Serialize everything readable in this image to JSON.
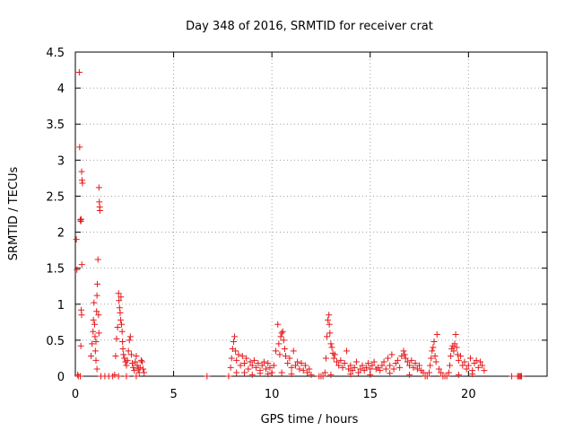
{
  "chart_data": {
    "type": "scatter",
    "title": "Day 348 of 2016, SRMTID for receiver crat",
    "xlabel": "GPS time / hours",
    "ylabel": "SRMTID / TECUs",
    "xlim": [
      0,
      24
    ],
    "ylim": [
      0,
      4.5
    ],
    "x_ticks": [
      0,
      5,
      10,
      15,
      20
    ],
    "x_tick_labels": [
      "0",
      "5",
      "10",
      "15",
      "20"
    ],
    "y_ticks": [
      0,
      0.5,
      1,
      1.5,
      2,
      2.5,
      3,
      3.5,
      4,
      4.5
    ],
    "y_tick_labels": [
      "0",
      "0.5",
      "1",
      "1.5",
      "2",
      "2.5",
      "3",
      "3.5",
      "4",
      "4.5"
    ],
    "grid": true,
    "marker": "+",
    "marker_color": "#e41a1c",
    "series": [
      {
        "name": "SRMTID",
        "points": [
          [
            0.05,
            1.9
          ],
          [
            0.08,
            1.48
          ],
          [
            0.12,
            0.02
          ],
          [
            0.15,
            0.0
          ],
          [
            0.2,
            4.22
          ],
          [
            0.22,
            3.18
          ],
          [
            0.25,
            2.17
          ],
          [
            0.28,
            2.15
          ],
          [
            0.3,
            2.18
          ],
          [
            0.32,
            2.84
          ],
          [
            0.34,
            2.72
          ],
          [
            0.36,
            2.68
          ],
          [
            0.33,
            1.55
          ],
          [
            0.3,
            0.92
          ],
          [
            0.32,
            0.85
          ],
          [
            0.28,
            0.42
          ],
          [
            0.25,
            0.0
          ],
          [
            0.8,
            0.28
          ],
          [
            0.85,
            0.45
          ],
          [
            0.9,
            0.62
          ],
          [
            0.92,
            0.78
          ],
          [
            0.95,
            1.02
          ],
          [
            0.98,
            0.72
          ],
          [
            1.0,
            0.55
          ],
          [
            1.02,
            0.35
          ],
          [
            1.05,
            0.48
          ],
          [
            1.08,
            0.9
          ],
          [
            1.1,
            1.12
          ],
          [
            1.12,
            1.28
          ],
          [
            1.15,
            1.62
          ],
          [
            1.18,
            0.85
          ],
          [
            1.2,
            0.6
          ],
          [
            1.05,
            0.22
          ],
          [
            1.1,
            0.1
          ],
          [
            1.2,
            2.62
          ],
          [
            1.22,
            2.42
          ],
          [
            1.24,
            2.35
          ],
          [
            1.25,
            2.3
          ],
          [
            1.3,
            0.0
          ],
          [
            1.5,
            0.0
          ],
          [
            1.7,
            0.0
          ],
          [
            1.9,
            0.0
          ],
          [
            2.0,
            0.02
          ],
          [
            2.05,
            0.28
          ],
          [
            2.1,
            0.52
          ],
          [
            2.15,
            0.68
          ],
          [
            2.2,
            1.15
          ],
          [
            2.22,
            1.05
          ],
          [
            2.25,
            0.95
          ],
          [
            2.28,
            0.88
          ],
          [
            2.3,
            0.78
          ],
          [
            2.32,
            1.1
          ],
          [
            2.35,
            0.72
          ],
          [
            2.38,
            0.62
          ],
          [
            2.4,
            0.48
          ],
          [
            2.42,
            0.38
          ],
          [
            2.45,
            0.3
          ],
          [
            2.5,
            0.25
          ],
          [
            2.55,
            0.2
          ],
          [
            2.6,
            0.15
          ],
          [
            2.65,
            0.22
          ],
          [
            2.7,
            0.35
          ],
          [
            2.75,
            0.5
          ],
          [
            2.8,
            0.55
          ],
          [
            2.85,
            0.3
          ],
          [
            2.9,
            0.18
          ],
          [
            2.95,
            0.12
          ],
          [
            3.0,
            0.08
          ],
          [
            3.05,
            0.2
          ],
          [
            3.1,
            0.28
          ],
          [
            3.15,
            0.15
          ],
          [
            3.2,
            0.1
          ],
          [
            3.25,
            0.05
          ],
          [
            3.3,
            0.12
          ],
          [
            3.35,
            0.22
          ],
          [
            3.4,
            0.2
          ],
          [
            3.45,
            0.1
          ],
          [
            3.5,
            0.05
          ],
          [
            2.2,
            0.0
          ],
          [
            2.6,
            0.0
          ],
          [
            3.1,
            0.0
          ],
          [
            6.7,
            0.0
          ],
          [
            7.8,
            0.0
          ],
          [
            7.9,
            0.12
          ],
          [
            7.95,
            0.25
          ],
          [
            8.0,
            0.38
          ],
          [
            8.05,
            0.48
          ],
          [
            8.1,
            0.55
          ],
          [
            8.15,
            0.35
          ],
          [
            8.2,
            0.22
          ],
          [
            8.3,
            0.3
          ],
          [
            8.4,
            0.15
          ],
          [
            8.5,
            0.28
          ],
          [
            8.6,
            0.18
          ],
          [
            8.7,
            0.25
          ],
          [
            8.8,
            0.1
          ],
          [
            8.9,
            0.2
          ],
          [
            9.0,
            0.15
          ],
          [
            9.1,
            0.22
          ],
          [
            9.2,
            0.12
          ],
          [
            9.3,
            0.18
          ],
          [
            9.4,
            0.08
          ],
          [
            9.5,
            0.15
          ],
          [
            9.6,
            0.2
          ],
          [
            9.7,
            0.1
          ],
          [
            9.8,
            0.18
          ],
          [
            9.9,
            0.12
          ],
          [
            10.0,
            0.05
          ],
          [
            8.2,
            0.05
          ],
          [
            8.6,
            0.05
          ],
          [
            9.0,
            0.02
          ],
          [
            9.4,
            0.04
          ],
          [
            9.8,
            0.03
          ],
          [
            10.1,
            0.15
          ],
          [
            10.2,
            0.35
          ],
          [
            10.3,
            0.72
          ],
          [
            10.35,
            0.45
          ],
          [
            10.4,
            0.3
          ],
          [
            10.45,
            0.55
          ],
          [
            10.5,
            0.6
          ],
          [
            10.55,
            0.62
          ],
          [
            10.6,
            0.5
          ],
          [
            10.65,
            0.38
          ],
          [
            10.7,
            0.28
          ],
          [
            10.8,
            0.18
          ],
          [
            10.9,
            0.25
          ],
          [
            11.0,
            0.12
          ],
          [
            11.1,
            0.35
          ],
          [
            11.2,
            0.15
          ],
          [
            11.3,
            0.2
          ],
          [
            11.4,
            0.1
          ],
          [
            11.5,
            0.18
          ],
          [
            11.6,
            0.08
          ],
          [
            11.7,
            0.15
          ],
          [
            11.8,
            0.05
          ],
          [
            11.9,
            0.1
          ],
          [
            12.0,
            0.02
          ],
          [
            10.5,
            0.05
          ],
          [
            11.0,
            0.03
          ],
          [
            12.4,
            0.0
          ],
          [
            12.5,
            0.0
          ],
          [
            12.6,
            0.0
          ],
          [
            12.7,
            0.05
          ],
          [
            12.75,
            0.25
          ],
          [
            12.8,
            0.55
          ],
          [
            12.85,
            0.78
          ],
          [
            12.9,
            0.85
          ],
          [
            12.92,
            0.72
          ],
          [
            12.95,
            0.6
          ],
          [
            13.0,
            0.45
          ],
          [
            13.05,
            0.4
          ],
          [
            13.1,
            0.32
          ],
          [
            13.15,
            0.25
          ],
          [
            13.2,
            0.3
          ],
          [
            13.3,
            0.2
          ],
          [
            13.4,
            0.15
          ],
          [
            13.5,
            0.22
          ],
          [
            13.6,
            0.12
          ],
          [
            13.7,
            0.18
          ],
          [
            13.8,
            0.35
          ],
          [
            13.9,
            0.1
          ],
          [
            14.0,
            0.15
          ],
          [
            14.1,
            0.08
          ],
          [
            14.2,
            0.12
          ],
          [
            14.3,
            0.2
          ],
          [
            14.4,
            0.05
          ],
          [
            14.5,
            0.1
          ],
          [
            14.6,
            0.15
          ],
          [
            14.7,
            0.08
          ],
          [
            14.8,
            0.12
          ],
          [
            14.9,
            0.18
          ],
          [
            15.0,
            0.1
          ],
          [
            15.1,
            0.15
          ],
          [
            15.2,
            0.2
          ],
          [
            15.3,
            0.1
          ],
          [
            15.4,
            0.12
          ],
          [
            15.5,
            0.08
          ],
          [
            15.6,
            0.15
          ],
          [
            15.7,
            0.2
          ],
          [
            15.8,
            0.1
          ],
          [
            15.9,
            0.25
          ],
          [
            16.0,
            0.15
          ],
          [
            16.1,
            0.3
          ],
          [
            16.2,
            0.1
          ],
          [
            16.3,
            0.18
          ],
          [
            16.4,
            0.22
          ],
          [
            16.5,
            0.12
          ],
          [
            16.6,
            0.28
          ],
          [
            16.7,
            0.35
          ],
          [
            16.75,
            0.3
          ],
          [
            16.8,
            0.25
          ],
          [
            16.9,
            0.2
          ],
          [
            17.0,
            0.15
          ],
          [
            17.1,
            0.22
          ],
          [
            17.2,
            0.12
          ],
          [
            17.3,
            0.18
          ],
          [
            17.4,
            0.1
          ],
          [
            17.5,
            0.15
          ],
          [
            17.6,
            0.08
          ],
          [
            17.7,
            0.05
          ],
          [
            13.0,
            0.02
          ],
          [
            14.0,
            0.03
          ],
          [
            15.0,
            0.02
          ],
          [
            16.0,
            0.04
          ],
          [
            17.0,
            0.02
          ],
          [
            17.8,
            0.0
          ],
          [
            17.9,
            0.0
          ],
          [
            18.0,
            0.05
          ],
          [
            18.05,
            0.15
          ],
          [
            18.1,
            0.25
          ],
          [
            18.15,
            0.35
          ],
          [
            18.2,
            0.4
          ],
          [
            18.25,
            0.48
          ],
          [
            18.3,
            0.28
          ],
          [
            18.35,
            0.2
          ],
          [
            18.4,
            0.58
          ],
          [
            18.5,
            0.1
          ],
          [
            18.6,
            0.05
          ],
          [
            18.7,
            0.0
          ],
          [
            18.8,
            0.0
          ],
          [
            18.9,
            0.0
          ],
          [
            19.0,
            0.05
          ],
          [
            19.05,
            0.15
          ],
          [
            19.1,
            0.28
          ],
          [
            19.15,
            0.38
          ],
          [
            19.2,
            0.42
          ],
          [
            19.25,
            0.35
          ],
          [
            19.3,
            0.45
          ],
          [
            19.35,
            0.58
          ],
          [
            19.4,
            0.4
          ],
          [
            19.45,
            0.3
          ],
          [
            19.5,
            0.22
          ],
          [
            19.6,
            0.28
          ],
          [
            19.7,
            0.15
          ],
          [
            19.8,
            0.2
          ],
          [
            19.9,
            0.1
          ],
          [
            20.0,
            0.15
          ],
          [
            20.1,
            0.25
          ],
          [
            20.2,
            0.08
          ],
          [
            20.3,
            0.18
          ],
          [
            20.4,
            0.22
          ],
          [
            20.5,
            0.12
          ],
          [
            20.6,
            0.2
          ],
          [
            20.7,
            0.15
          ],
          [
            20.8,
            0.08
          ],
          [
            19.5,
            0.02
          ],
          [
            20.2,
            0.03
          ],
          [
            22.2,
            0.0
          ],
          [
            22.5,
            0.0
          ],
          [
            22.55,
            0.0
          ],
          [
            22.6,
            0.0
          ],
          [
            22.65,
            0.0
          ],
          [
            22.7,
            0.0
          ]
        ]
      }
    ]
  }
}
